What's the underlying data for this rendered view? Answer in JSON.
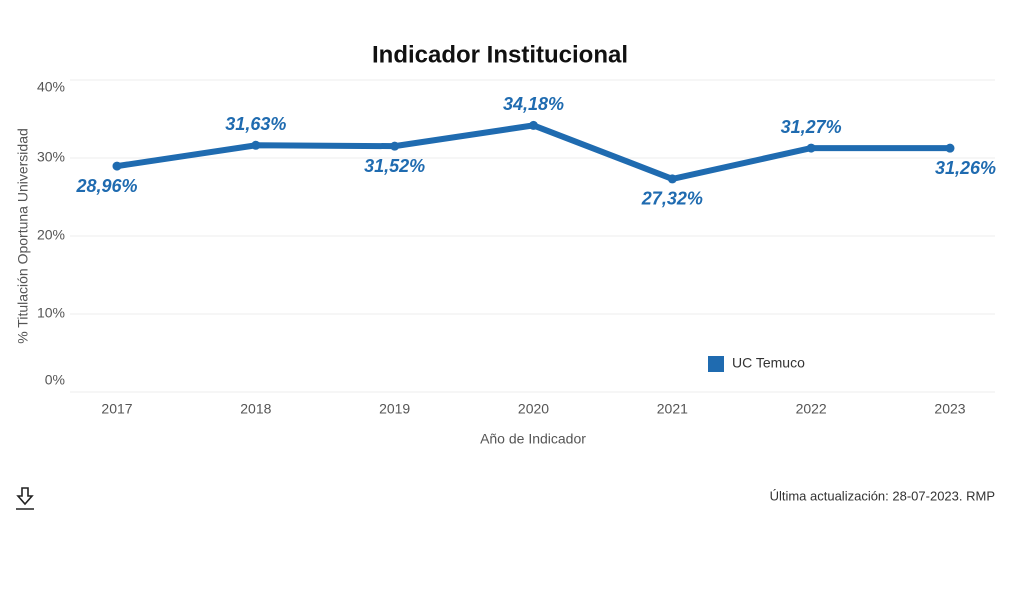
{
  "chart_data": {
    "type": "line",
    "title": "Indicador Institucional",
    "x_label": "Año de Indicador",
    "y_label": "% Titulación Oportuna Universidad",
    "categories": [
      "2017",
      "2018",
      "2019",
      "2020",
      "2021",
      "2022",
      "2023"
    ],
    "series": [
      {
        "name": "UC Temuco",
        "color": "#1f6bb0",
        "values": [
          28.96,
          31.63,
          31.52,
          34.18,
          27.32,
          31.27,
          31.26
        ],
        "value_labels": [
          "28,96%",
          "31,63%",
          "31,52%",
          "34,18%",
          "27,32%",
          "31,27%",
          "31,26%"
        ]
      }
    ],
    "ylim": [
      0,
      40
    ],
    "yticks": [
      {
        "value": 0,
        "label": "0%"
      },
      {
        "value": 10,
        "label": "10%"
      },
      {
        "value": 20,
        "label": "20%"
      },
      {
        "value": 30,
        "label": "30%"
      },
      {
        "value": 40,
        "label": "40%"
      }
    ],
    "grid": true
  },
  "footer": {
    "updated": "Última actualización: 28-07-2023. RMP"
  }
}
